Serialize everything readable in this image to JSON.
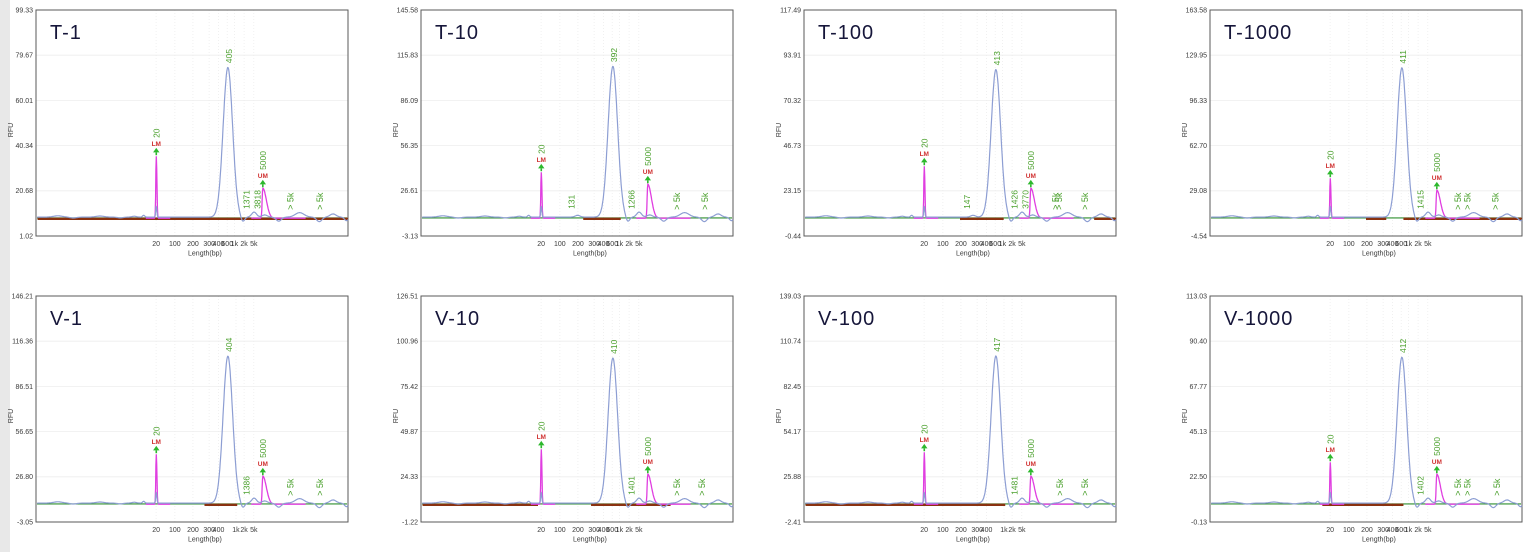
{
  "report": {
    "description": "Capillary electrophoresis fragment-size traces, 8 samples in a 2x4 grid",
    "row1_titles": [
      "T-1",
      "T-10",
      "T-100",
      "T-1000"
    ],
    "row2_titles": [
      "V-1",
      "V-10",
      "V-100",
      "V-1000"
    ]
  },
  "colors": {
    "trace_blue": "#8d9ed3",
    "marker_magenta": "#e03ee0",
    "label_green": "#4aa02c",
    "arrow_green": "#2db82d",
    "marker_red": "#d03030",
    "baseline_green": "#2f8f2f",
    "region_brown": "#8a3210",
    "grid_line": "#ededed",
    "axis_text": "#3a3a3a",
    "box_border": "#5a5a5a",
    "title_color": "#16163a",
    "gutter_gray": "#e8e8e8"
  },
  "chart_data": {
    "type": "line",
    "layout": "2x4-grid",
    "x_label": "Length(bp)",
    "y_label": "RFU",
    "x_scale": "log-like",
    "marker_legend": {
      "lower_marker_tag": "LM",
      "upper_marker_tag": "UM"
    },
    "subplots": [
      {
        "title": "T-1",
        "y_ticks": [
          99.33,
          79.67,
          60.01,
          40.34,
          20.68,
          1.02
        ],
        "x_ticks": [
          "20",
          "100",
          "200",
          "300",
          "400",
          "600",
          "1k",
          "2k",
          "5k"
        ],
        "lower_marker": {
          "bp": 20,
          "tag": "LM"
        },
        "upper_marker": {
          "bp": 5000,
          "tag": "UM"
        },
        "main_peak": {
          "bp": 405,
          "rfu_approx": 74
        },
        "minor_peaks_bp": [
          1371,
          3818
        ],
        "offscale_labels": [
          "> 5k",
          "> 5k"
        ]
      },
      {
        "title": "T-10",
        "y_ticks": [
          145.58,
          115.83,
          86.09,
          56.35,
          26.61,
          -3.13
        ],
        "x_ticks": [
          "20",
          "100",
          "200",
          "300",
          "400",
          "600",
          "1k",
          "2k",
          "5k"
        ],
        "lower_marker": {
          "bp": 20,
          "tag": "LM"
        },
        "upper_marker": {
          "bp": 5000,
          "tag": "UM"
        },
        "main_peak": {
          "bp": 392,
          "rfu_approx": 108
        },
        "minor_peaks_bp": [
          131,
          1266
        ],
        "offscale_labels": [
          "> 5k",
          "> 5k"
        ]
      },
      {
        "title": "T-100",
        "y_ticks": [
          117.49,
          93.91,
          70.32,
          46.73,
          23.15,
          -0.44
        ],
        "x_ticks": [
          "20",
          "100",
          "200",
          "300",
          "400",
          "600",
          "1k",
          "2k",
          "5k"
        ],
        "lower_marker": {
          "bp": 20,
          "tag": "LM"
        },
        "upper_marker": {
          "bp": 5000,
          "tag": "UM"
        },
        "main_peak": {
          "bp": 413,
          "rfu_approx": 86
        },
        "minor_peaks_bp": [
          147,
          1426,
          3770
        ],
        "offscale_labels": [
          "> 5k",
          "> 5k",
          "> 5k"
        ]
      },
      {
        "title": "T-1000",
        "y_ticks": [
          163.58,
          129.95,
          96.33,
          62.7,
          29.08,
          -4.54
        ],
        "x_ticks": [
          "20",
          "100",
          "200",
          "300",
          "400",
          "600",
          "1k",
          "2k",
          "5k"
        ],
        "lower_marker": {
          "bp": 20,
          "tag": "LM"
        },
        "upper_marker": {
          "bp": 5000,
          "tag": "UM"
        },
        "main_peak": {
          "bp": 411,
          "rfu_approx": 120
        },
        "minor_peaks_bp": [
          1415
        ],
        "offscale_labels": [
          "> 5k",
          "> 5k",
          "> 5k"
        ]
      },
      {
        "title": "V-1",
        "y_ticks": [
          146.21,
          116.36,
          86.51,
          56.65,
          26.8,
          -3.05
        ],
        "x_ticks": [
          "20",
          "100",
          "200",
          "300",
          "400",
          "1k",
          "2k",
          "5k"
        ],
        "lower_marker": {
          "bp": 20,
          "tag": "LM"
        },
        "upper_marker": {
          "bp": 5000,
          "tag": "UM"
        },
        "main_peak": {
          "bp": 404,
          "rfu_approx": 106
        },
        "minor_peaks_bp": [
          1386
        ],
        "offscale_labels": [
          "> 5k",
          "> 5k"
        ]
      },
      {
        "title": "V-10",
        "y_ticks": [
          126.51,
          100.96,
          75.42,
          49.87,
          24.33,
          -1.22
        ],
        "x_ticks": [
          "20",
          "100",
          "200",
          "300",
          "400",
          "600",
          "1k",
          "2k",
          "5k"
        ],
        "lower_marker": {
          "bp": 20,
          "tag": "LM"
        },
        "upper_marker": {
          "bp": 5000,
          "tag": "UM"
        },
        "main_peak": {
          "bp": 410,
          "rfu_approx": 91
        },
        "minor_peaks_bp": [
          1401
        ],
        "offscale_labels": [
          "> 5k",
          "> 5k"
        ]
      },
      {
        "title": "V-100",
        "y_ticks": [
          139.03,
          110.74,
          82.45,
          54.17,
          25.88,
          -2.41
        ],
        "x_ticks": [
          "20",
          "100",
          "200",
          "300",
          "400",
          "1k",
          "2k",
          "5k"
        ],
        "lower_marker": {
          "bp": 20,
          "tag": "LM"
        },
        "upper_marker": {
          "bp": 5000,
          "tag": "UM"
        },
        "main_peak": {
          "bp": 417,
          "rfu_approx": 101
        },
        "minor_peaks_bp": [
          1481
        ],
        "offscale_labels": [
          "> 5k",
          "> 5k"
        ]
      },
      {
        "title": "V-1000",
        "y_ticks": [
          113.03,
          90.4,
          67.77,
          45.13,
          22.5,
          -0.13
        ],
        "x_ticks": [
          "20",
          "100",
          "200",
          "300",
          "400",
          "600",
          "1k",
          "2k",
          "5k"
        ],
        "lower_marker": {
          "bp": 20,
          "tag": "LM"
        },
        "upper_marker": {
          "bp": 5000,
          "tag": "UM"
        },
        "main_peak": {
          "bp": 412,
          "rfu_approx": 82
        },
        "minor_peaks_bp": [
          1402
        ],
        "offscale_labels": [
          "> 5k",
          "> 5k",
          "> 5k"
        ]
      }
    ]
  },
  "render": {
    "panels": [
      {
        "row": 0,
        "col": 0,
        "lm_h": 62,
        "um_h": 30,
        "minor_labels": [
          {
            "text": "1371",
            "f": 0.675
          },
          {
            "text": "3818",
            "f": 0.71
          }
        ],
        "bumps": [
          [
            0.687,
            5
          ]
        ],
        "gt5k_f": [
          0.815,
          0.91
        ],
        "regions": [
          [
            0.005,
            1.0
          ]
        ]
      },
      {
        "row": 0,
        "col": 1,
        "lm_h": 46,
        "um_h": 34,
        "minor_labels": [
          {
            "text": "131",
            "f": 0.483
          },
          {
            "text": "1266",
            "f": 0.675
          }
        ],
        "bumps": [
          [
            0.49,
            1.8
          ],
          [
            0.687,
            5
          ]
        ],
        "gt5k_f": [
          0.82,
          0.91
        ],
        "regions": [
          [
            0.52,
            0.64
          ]
        ]
      },
      {
        "row": 0,
        "col": 2,
        "lm_h": 52,
        "um_h": 30,
        "minor_labels": [
          {
            "text": "147",
            "f": 0.523
          },
          {
            "text": "1426",
            "f": 0.675
          },
          {
            "text": "3770",
            "f": 0.71
          }
        ],
        "bumps": [
          [
            0.53,
            1.8
          ],
          [
            0.687,
            5
          ]
        ],
        "gt5k_f": [
          0.806,
          0.818,
          0.9
        ],
        "regions": [
          [
            0.5,
            0.64
          ],
          [
            0.93,
            1.0
          ]
        ]
      },
      {
        "row": 0,
        "col": 3,
        "lm_h": 40,
        "um_h": 28,
        "minor_labels": [
          {
            "text": "1415",
            "f": 0.675
          }
        ],
        "bumps": [
          [
            0.687,
            5
          ]
        ],
        "gt5k_f": [
          0.795,
          0.825,
          0.915
        ],
        "regions": [
          [
            0.5,
            0.565
          ],
          [
            0.62,
            1.0
          ]
        ]
      },
      {
        "row": 1,
        "col": 0,
        "lm_h": 50,
        "um_h": 28,
        "minor_labels": [
          {
            "text": "1386",
            "f": 0.675
          }
        ],
        "bumps": [
          [
            0.687,
            5
          ]
        ],
        "gt5k_f": [
          0.815,
          0.91
        ],
        "regions": [
          [
            0.54,
            0.645
          ]
        ]
      },
      {
        "row": 1,
        "col": 1,
        "lm_h": 55,
        "um_h": 30,
        "minor_labels": [
          {
            "text": "1401",
            "f": 0.675
          }
        ],
        "bumps": [
          [
            0.687,
            5
          ]
        ],
        "gt5k_f": [
          0.82,
          0.9
        ],
        "regions": [
          [
            0.005,
            0.375
          ],
          [
            0.545,
            0.8
          ]
        ]
      },
      {
        "row": 1,
        "col": 2,
        "lm_h": 52,
        "um_h": 28,
        "minor_labels": [
          {
            "text": "1481",
            "f": 0.675
          }
        ],
        "bumps": [
          [
            0.687,
            5
          ]
        ],
        "gt5k_f": [
          0.82,
          0.9
        ],
        "regions": [
          [
            0.005,
            0.645
          ]
        ]
      },
      {
        "row": 1,
        "col": 3,
        "lm_h": 42,
        "um_h": 30,
        "minor_labels": [
          {
            "text": "1402",
            "f": 0.675
          }
        ],
        "bumps": [
          [
            0.687,
            5
          ]
        ],
        "gt5k_f": [
          0.795,
          0.825,
          0.92
        ],
        "regions": [
          [
            0.36,
            0.62
          ]
        ]
      }
    ]
  }
}
